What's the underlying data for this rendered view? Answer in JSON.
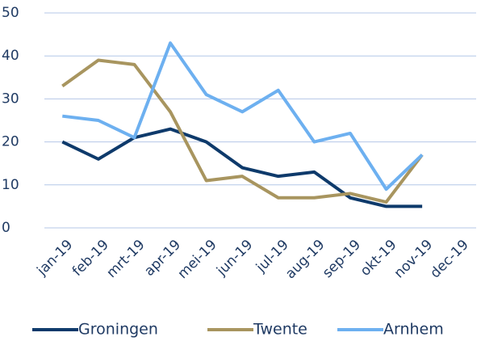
{
  "chart_data": {
    "type": "line",
    "categories": [
      "jan-19",
      "feb-19",
      "mrt-19",
      "apr-19",
      "mei-19",
      "jun-19",
      "jul-19",
      "aug-19",
      "sep-19",
      "okt-19",
      "nov-19",
      "dec-19"
    ],
    "series": [
      {
        "name": "Groningen",
        "color": "#0e3a6b",
        "values": [
          20,
          16,
          21,
          23,
          20,
          14,
          12,
          13,
          7,
          5,
          5,
          null
        ]
      },
      {
        "name": "Twente",
        "color": "#a8955f",
        "values": [
          33,
          39,
          38,
          27,
          11,
          12,
          7,
          7,
          8,
          6,
          17,
          null
        ]
      },
      {
        "name": "Arnhem",
        "color": "#6db0f0",
        "values": [
          26,
          25,
          21,
          43,
          31,
          27,
          32,
          20,
          22,
          9,
          17,
          null
        ]
      }
    ],
    "ylim": [
      0,
      50
    ],
    "yticks": [
      0,
      10,
      20,
      30,
      40,
      50
    ],
    "grid": true,
    "legend": "bottom"
  }
}
